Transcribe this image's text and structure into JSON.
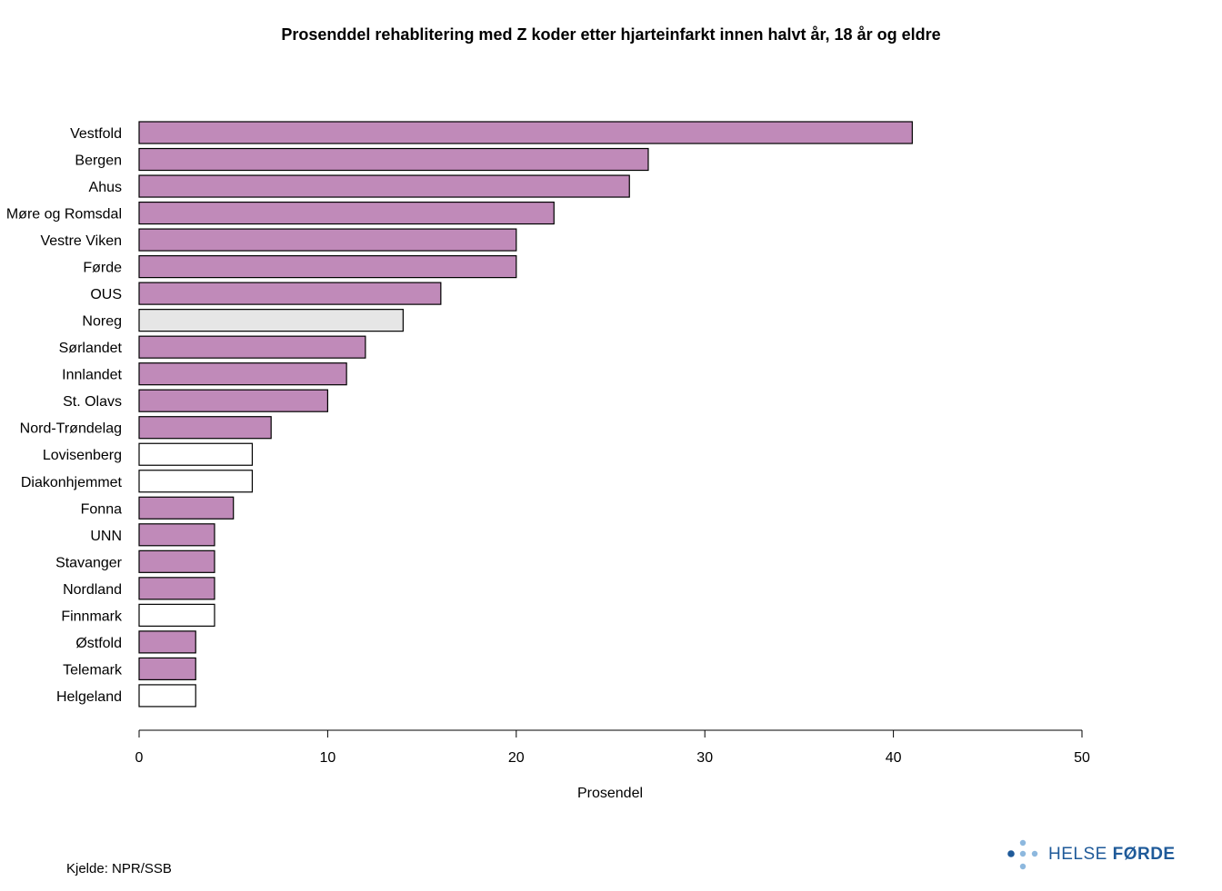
{
  "chart_data": {
    "type": "bar",
    "orientation": "horizontal",
    "title": "Prosenddel rehablitering med Z koder etter hjarteinfarkt innen halvt år, 18 år og eldre",
    "xlabel": "Prosendel",
    "ylabel": "",
    "xlim": [
      0,
      50
    ],
    "xticks": [
      0,
      10,
      20,
      30,
      40,
      50
    ],
    "grid": false,
    "legend": "none",
    "categories": [
      "Vestfold",
      "Bergen",
      "Ahus",
      "Møre og Romsdal",
      "Vestre Viken",
      "Førde",
      "OUS",
      "Noreg",
      "Sørlandet",
      "Innlandet",
      "St. Olavs",
      "Nord-Trøndelag",
      "Lovisenberg",
      "Diakonhjemmet",
      "Fonna",
      "UNN",
      "Stavanger",
      "Nordland",
      "Finnmark",
      "Østfold",
      "Telemark",
      "Helgeland"
    ],
    "values": [
      41,
      27,
      26,
      22,
      20,
      20,
      16,
      14,
      12,
      11,
      10,
      7,
      6,
      6,
      5,
      4,
      4,
      4,
      4,
      3,
      3,
      3
    ],
    "bar_fill": [
      "purple",
      "purple",
      "purple",
      "purple",
      "purple",
      "purple",
      "purple",
      "grey",
      "purple",
      "purple",
      "purple",
      "purple",
      "white",
      "white",
      "purple",
      "purple",
      "purple",
      "purple",
      "white",
      "purple",
      "purple",
      "white"
    ],
    "colors": {
      "purple": "#c08ab9",
      "grey": "#e6e6e6",
      "white": "#ffffff",
      "outline": "#000000"
    }
  },
  "source_note": "Kjelde: NPR/SSB",
  "logo": {
    "text_light": "HELSE ",
    "text_bold": "FØRDE",
    "icon": "helse-forde-dots-icon",
    "colors": {
      "dark": "#1f5a99",
      "light": "#8db8de"
    }
  }
}
